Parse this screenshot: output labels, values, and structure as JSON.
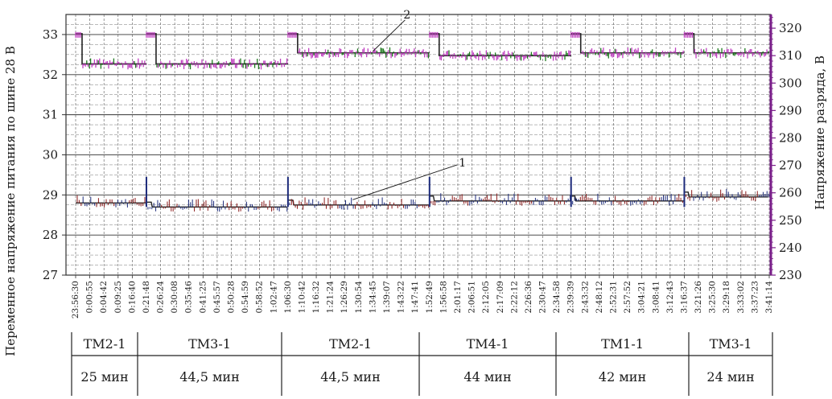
{
  "chart_data": {
    "type": "line",
    "ylabel_left": "Переменное напряжение питания по шине 28 В",
    "ylabel_right": "Напряжение разряда, В",
    "ylim_left": [
      27,
      33.5
    ],
    "ylim_right": [
      230,
      325
    ],
    "yticks_left": [
      "27",
      "28",
      "29",
      "30",
      "31",
      "32",
      "33"
    ],
    "yticks_right": [
      "230",
      "240",
      "250",
      "260",
      "270",
      "280",
      "290",
      "300",
      "310",
      "320"
    ],
    "x_tick_labels": [
      "23:56:30",
      "0:00:55",
      "0:04:42",
      "0:09:25",
      "0:16:40",
      "0:21:48",
      "0:26:24",
      "0:30:08",
      "0:35:46",
      "0:41:25",
      "0:45:57",
      "0:50:28",
      "0:54:59",
      "0:58:52",
      "1:02:47",
      "1:06:30",
      "1:10:42",
      "1:16:32",
      "1:21:24",
      "1:26:29",
      "1:30:54",
      "1:34:45",
      "1:39:07",
      "1:43:22",
      "1:47:41",
      "1:52:49",
      "1:56:58",
      "2:01:17",
      "2:06:51",
      "2:12:05",
      "2:17:09",
      "2:22:12",
      "2:26:36",
      "2:30:47",
      "2:34:58",
      "2:39:39",
      "2:43:32",
      "2:48:12",
      "2:52:31",
      "2:57:52",
      "3:04:21",
      "3:08:41",
      "3:12:43",
      "3:16:37",
      "3:21:26",
      "3:25:30",
      "3:29:18",
      "3:33:02",
      "3:37:23",
      "3:41:14"
    ],
    "grid": true,
    "series": [
      {
        "name": "1",
        "axis": "left",
        "colors": [
          "#8b1a1a",
          "#1c2a7a"
        ],
        "baseline": [
          28.8,
          28.7,
          28.75,
          28.85,
          28.85,
          28.95
        ],
        "spikes_at_index": [
          5,
          15,
          25,
          35,
          43
        ],
        "spike_value": 29.45
      },
      {
        "name": "2",
        "axis": "right",
        "colors": [
          "#c040c0",
          "#1f7a1f"
        ],
        "baseline": [
          307,
          307,
          311,
          310,
          311,
          311
        ],
        "steps_at_index": [
          0,
          5,
          15,
          25,
          35,
          43
        ],
        "step_value": 318
      }
    ],
    "annotations": [
      {
        "label": "1",
        "series": "1"
      },
      {
        "label": "2",
        "series": "2"
      }
    ]
  },
  "segments": [
    {
      "mode": "ТМ2-1",
      "duration": "25 мин"
    },
    {
      "mode": "ТМ3-1",
      "duration": "44,5 мин"
    },
    {
      "mode": "ТМ2-1",
      "duration": "44,5 мин"
    },
    {
      "mode": "ТМ4-1",
      "duration": "44 мин"
    },
    {
      "mode": "ТМ1-1",
      "duration": "42 мин"
    },
    {
      "mode": "ТМ3-1",
      "duration": "24 мин"
    }
  ]
}
